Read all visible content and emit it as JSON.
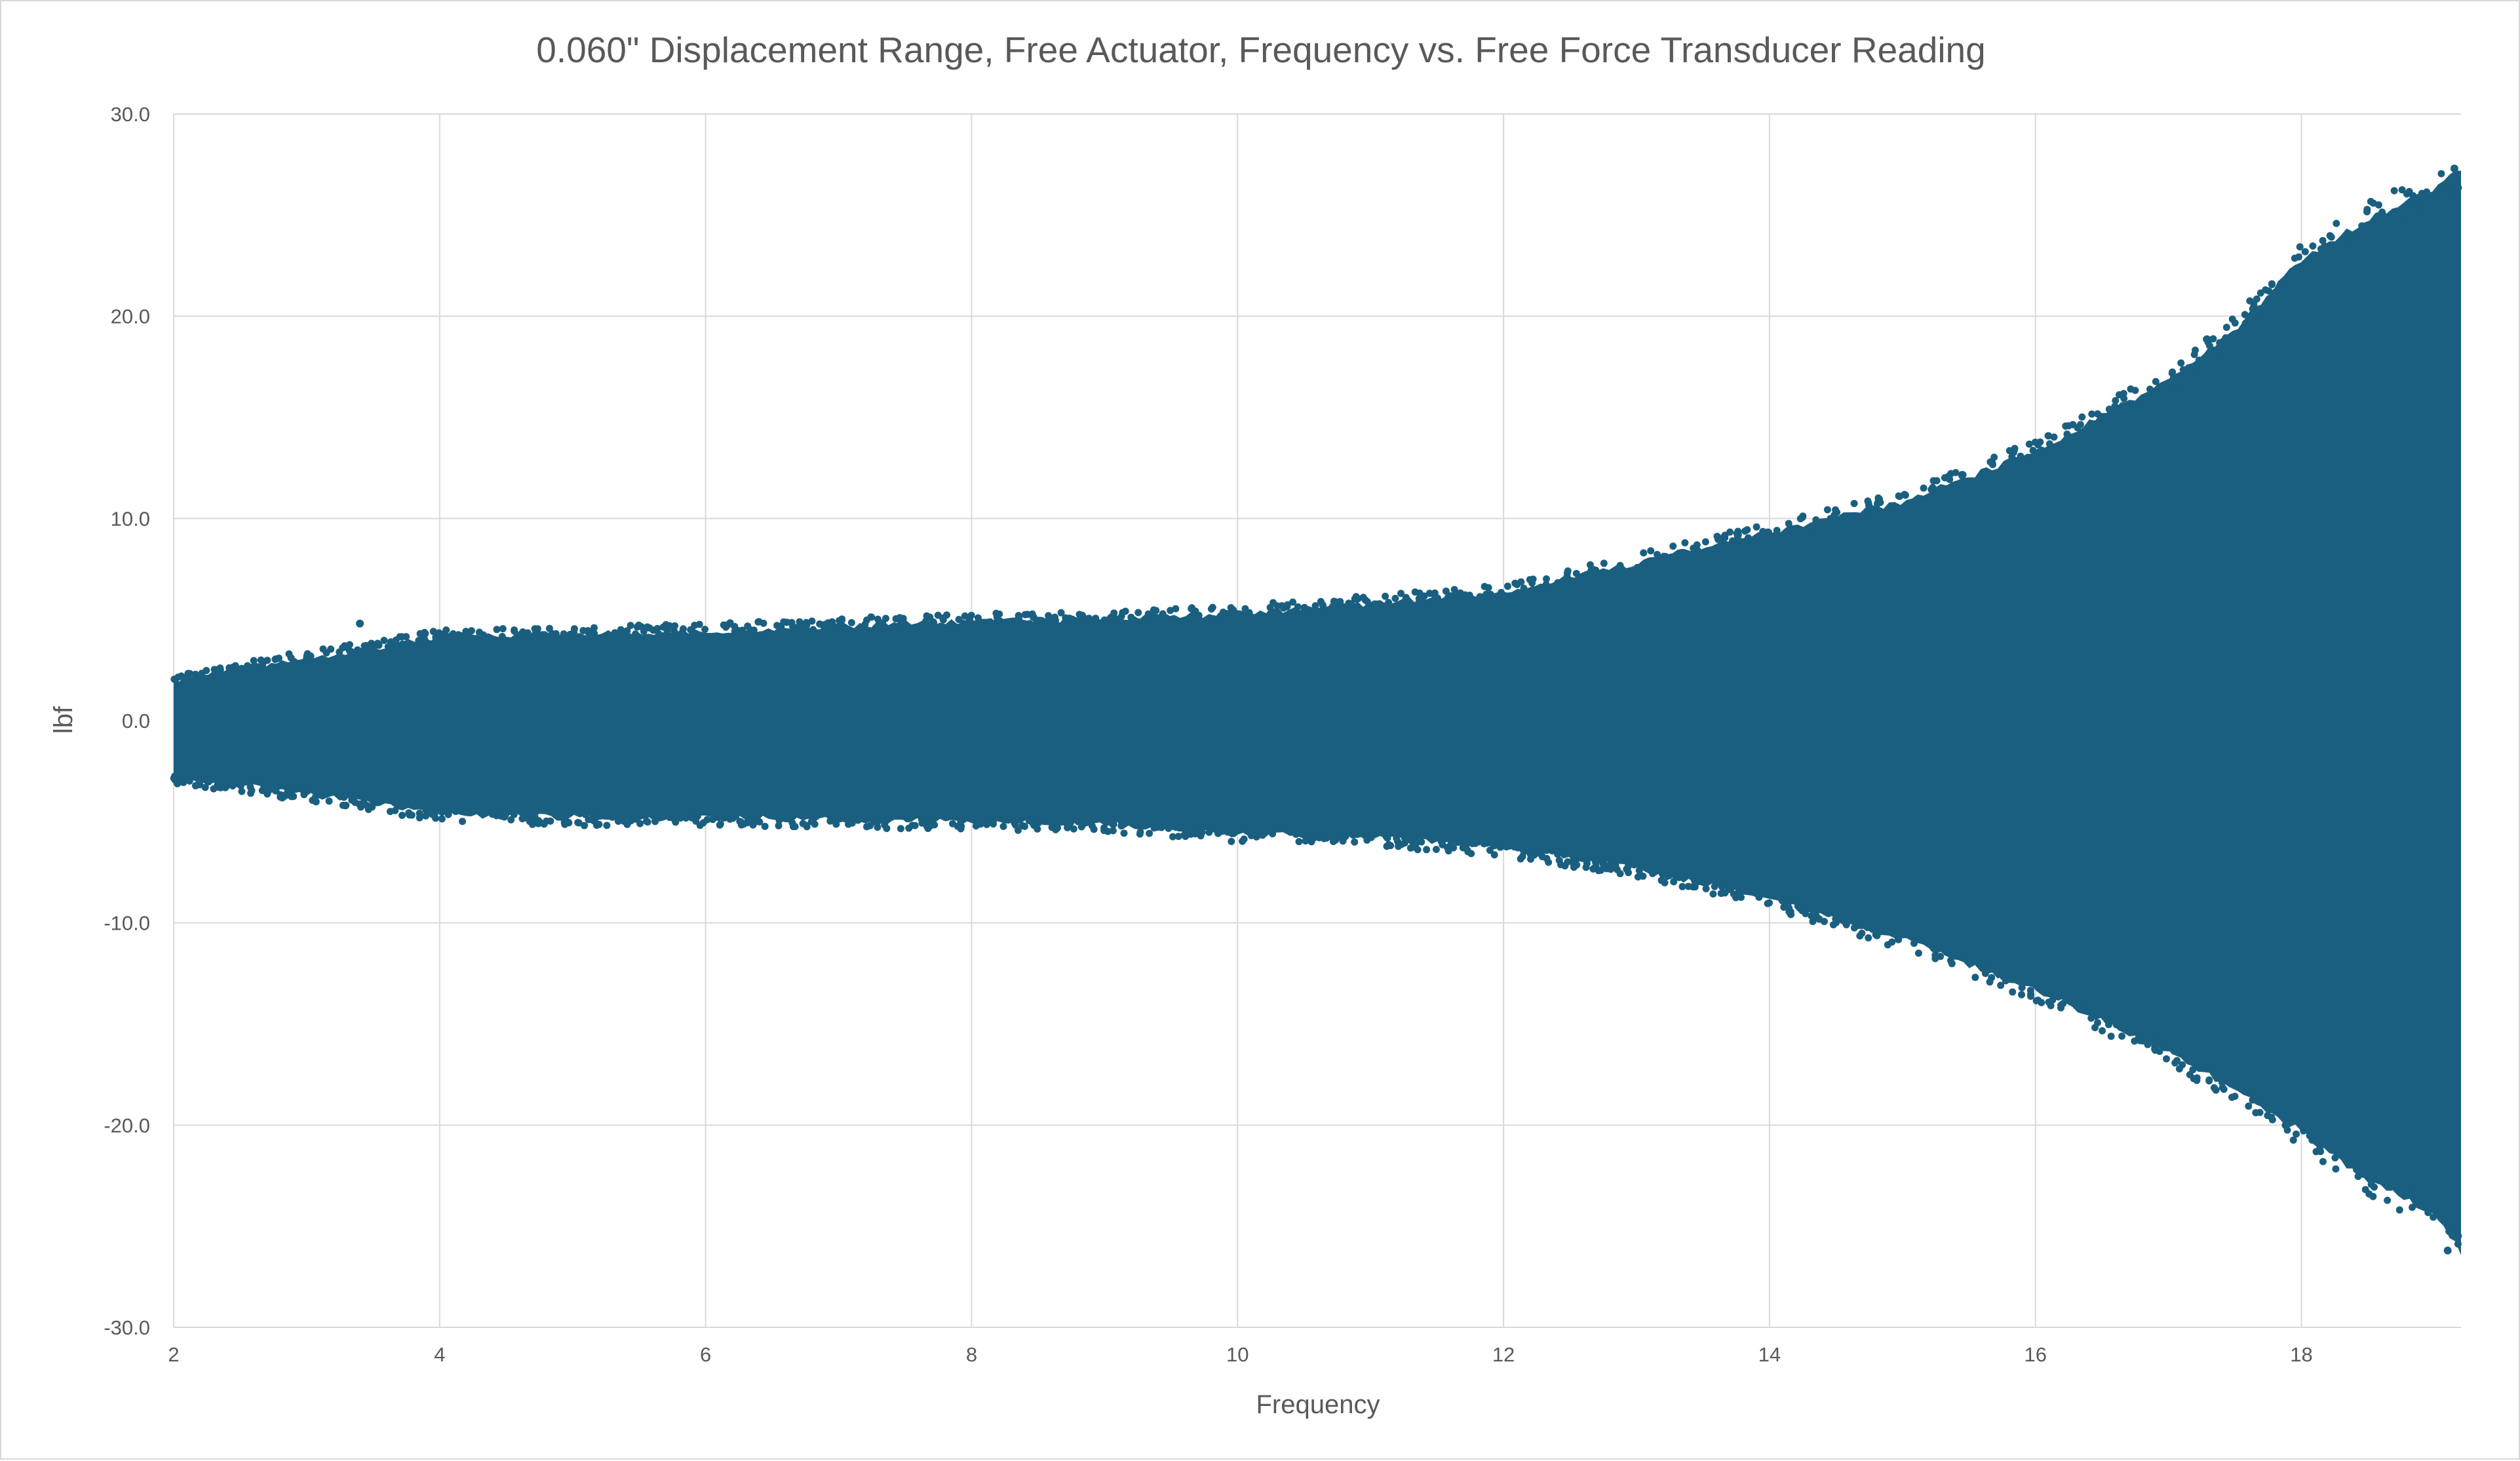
{
  "chart_data": {
    "type": "scatter",
    "title": "0.060\" Displacement Range, Free Actuator, Frequency vs. Free Force Transducer Reading",
    "xlabel": "Frequency",
    "ylabel": "lbf",
    "xlim": [
      2,
      19.2
    ],
    "ylim": [
      -30,
      30
    ],
    "x_ticks": [
      2,
      4,
      6,
      8,
      10,
      12,
      14,
      16,
      18
    ],
    "x_tick_labels": [
      "2",
      "4",
      "6",
      "8",
      "10",
      "12",
      "14",
      "16",
      "18"
    ],
    "y_ticks": [
      30,
      20,
      10,
      0,
      -10,
      -20,
      -30
    ],
    "y_tick_labels": [
      "30.0",
      "20.0",
      "10.0",
      "0.0",
      "-10.0",
      "-20.0",
      "-30.0"
    ],
    "grid": true,
    "marker_color": "#1a5f80",
    "envelope": {
      "x": [
        2,
        3,
        4,
        5,
        6,
        7,
        8,
        9,
        10,
        11,
        12,
        13,
        14,
        15,
        16,
        17,
        17.5,
        18,
        18.5,
        19,
        19.2
      ],
      "upper": [
        2.2,
        3.3,
        4.3,
        4.5,
        4.6,
        4.9,
        5.1,
        5.2,
        5.5,
        6.0,
        6.5,
        8.0,
        9.5,
        11.0,
        13.5,
        17.0,
        19.5,
        23.0,
        25.0,
        26.5,
        27.5
      ],
      "lower": [
        -3.0,
        -3.8,
        -4.8,
        -5.0,
        -5.0,
        -5.1,
        -5.2,
        -5.3,
        -5.8,
        -6.0,
        -6.5,
        -7.5,
        -9.0,
        -11.0,
        -13.5,
        -16.5,
        -18.5,
        -20.5,
        -23.0,
        -24.5,
        -26.5
      ]
    },
    "notable_points": [
      {
        "x": 3.4,
        "y": 4.8
      },
      {
        "x": 16.9,
        "y": -16.0
      },
      {
        "x": 19.1,
        "y": -26.2
      },
      {
        "x": 19.15,
        "y": 27.3
      }
    ]
  }
}
